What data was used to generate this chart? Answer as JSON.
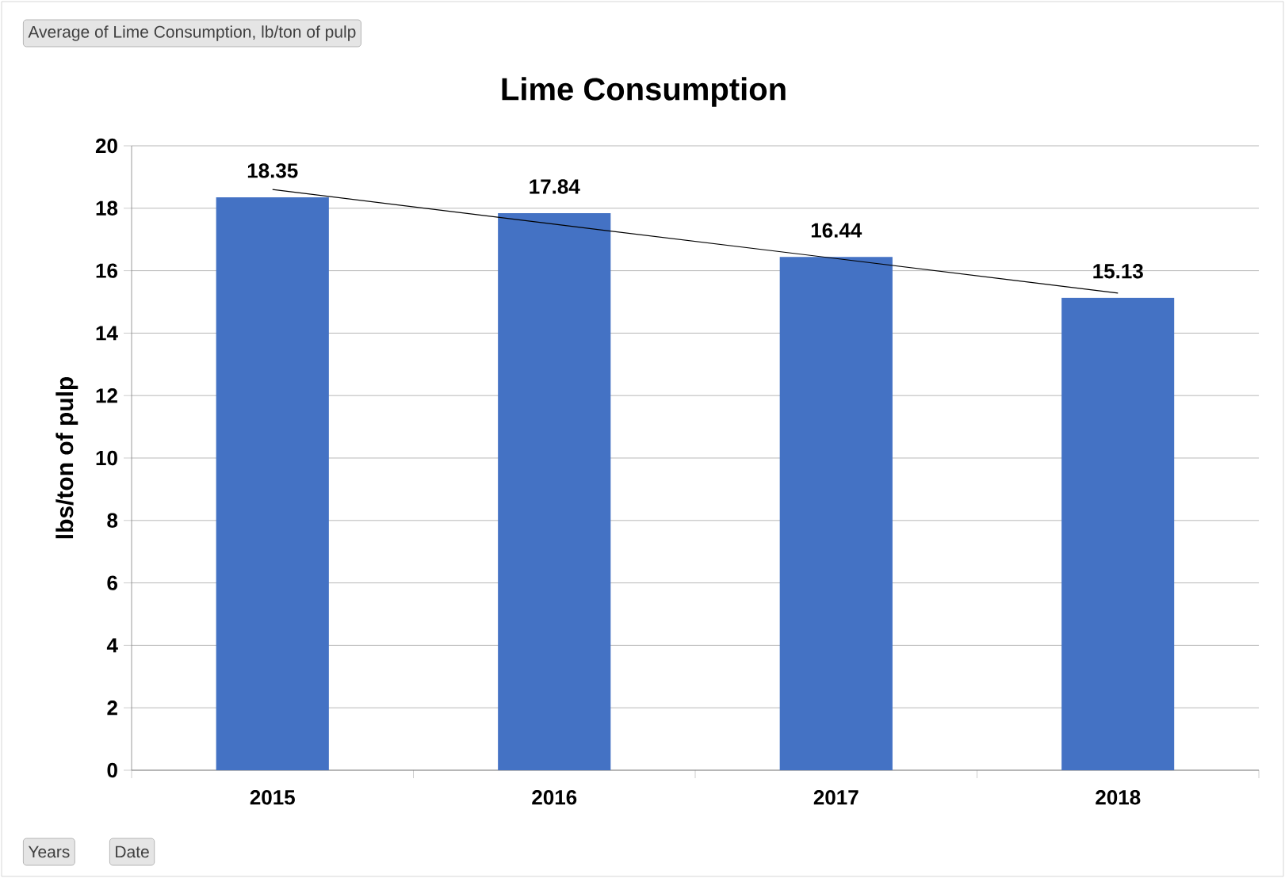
{
  "chart_data": {
    "type": "bar",
    "title": "Lime Consumption",
    "ylabel": "lbs/ton of pulp",
    "categories": [
      "2015",
      "2016",
      "2017",
      "2018"
    ],
    "series": [
      {
        "color": "#4472c4",
        "values": [
          18.35,
          17.84,
          16.44,
          15.13
        ],
        "data_labels": true
      },
      {
        "type": "line",
        "color": "#000000",
        "values": [
          18.6,
          17.49,
          16.39,
          15.28
        ]
      }
    ],
    "ylim": [
      0,
      20
    ],
    "yticks": [
      0,
      2,
      4,
      6,
      8,
      10,
      12,
      14,
      16,
      18,
      20
    ],
    "grid": "y",
    "annotations": [
      "Average of Lime Consumption, lb/ton of pulp",
      "Years",
      "Date"
    ]
  }
}
